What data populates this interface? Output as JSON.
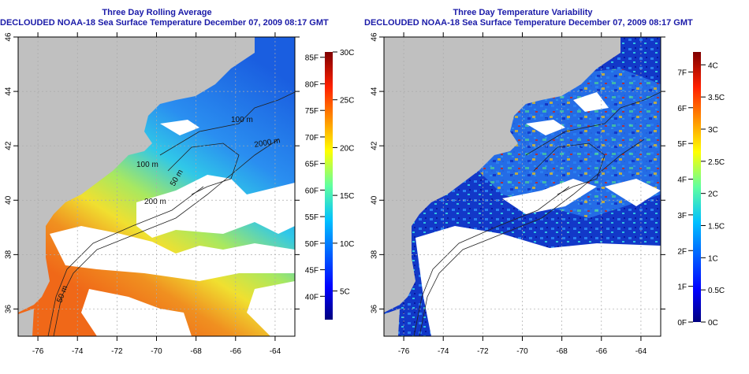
{
  "left_panel": {
    "title": "Three Day Rolling Average",
    "subtitle": "DECLOUDED NOAA-18 Sea Surface Temperature December 07, 2009 08:17 GMT",
    "colorbar": {
      "left_labels": [
        "85F",
        "80F",
        "75F",
        "70F",
        "65F",
        "60F",
        "55F",
        "50F",
        "45F",
        "40F"
      ],
      "left_values": [
        85,
        80,
        75,
        70,
        65,
        60,
        55,
        50,
        45,
        40
      ],
      "right_labels": [
        "30C",
        "25C",
        "20C",
        "15C",
        "10C",
        "5C"
      ],
      "right_values": [
        30,
        25,
        20,
        15,
        10,
        5
      ],
      "range_c": [
        2,
        30
      ]
    },
    "contour_labels": [
      "100 m",
      "100 m",
      "2000 m",
      "50 m",
      "200 m",
      "50 m"
    ]
  },
  "right_panel": {
    "title": "Three Day Temperature Variability",
    "subtitle": "DECLOUDED NOAA-18 Sea Surface Temperature December 07, 2009 08:17 GMT",
    "colorbar": {
      "left_labels": [
        "7F",
        "6F",
        "5F",
        "4F",
        "3F",
        "2F",
        "1F",
        "0F"
      ],
      "left_values": [
        7,
        6,
        5,
        4,
        3,
        2,
        1,
        0
      ],
      "right_labels": [
        "4C",
        "3.5C",
        "3C",
        "2.5C",
        "2C",
        "1.5C",
        "1C",
        "0.5C",
        "0C"
      ],
      "right_values": [
        4,
        3.5,
        3,
        2.5,
        2,
        1.5,
        1,
        0.5,
        0
      ],
      "range_c": [
        0,
        4.2
      ]
    }
  },
  "axes": {
    "lon_ticks": [
      "-76",
      "-74",
      "-72",
      "-70",
      "-68",
      "-66",
      "-64"
    ],
    "lon_values": [
      -76,
      -74,
      -72,
      -70,
      -68,
      -66,
      -64
    ],
    "lat_ticks": [
      "46",
      "44",
      "42",
      "40",
      "38",
      "36"
    ],
    "lat_values": [
      46,
      44,
      42,
      40,
      38,
      36
    ],
    "lon_range": [
      -77,
      -63
    ],
    "lat_range": [
      35,
      46
    ]
  },
  "colors": {
    "title": "#1a1aa8",
    "land": "#c0c0c0",
    "cloud": "#ffffff"
  }
}
